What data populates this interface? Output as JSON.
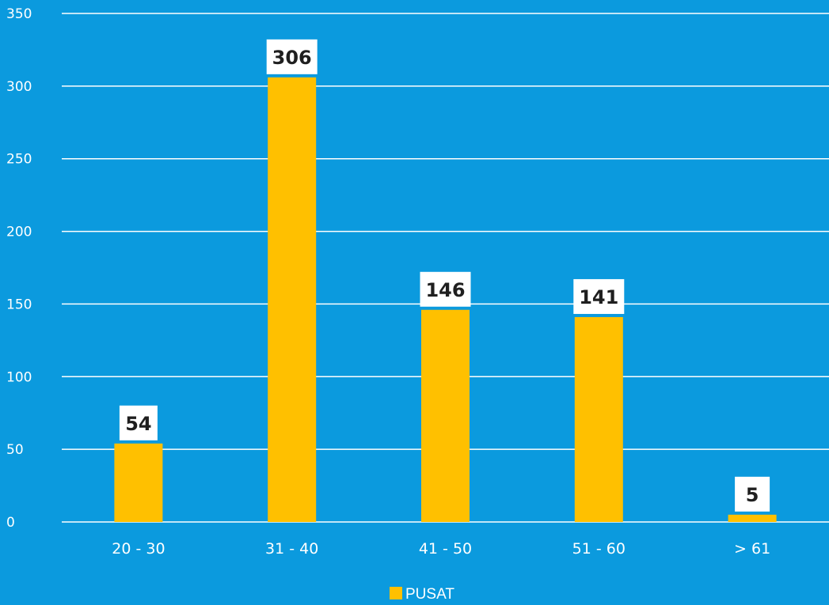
{
  "chart_data": {
    "type": "bar",
    "categories": [
      "20 - 30",
      "31 - 40",
      "41 - 50",
      "51 - 60",
      "> 61"
    ],
    "series": [
      {
        "name": "PUSAT",
        "values": [
          54,
          306,
          146,
          141,
          5
        ],
        "color": "#ffc000"
      }
    ],
    "y_ticks": [
      "0",
      "50",
      "100",
      "150",
      "200",
      "250",
      "300",
      "350"
    ],
    "ylim": [
      0,
      350
    ],
    "grid": true,
    "legend": {
      "position": "bottom-center",
      "entries": [
        "PUSAT"
      ]
    },
    "colors": {
      "background": "#0b9ade",
      "bar": "#ffc000",
      "grid": "#ffffff",
      "label_box": "#ffffff"
    }
  }
}
